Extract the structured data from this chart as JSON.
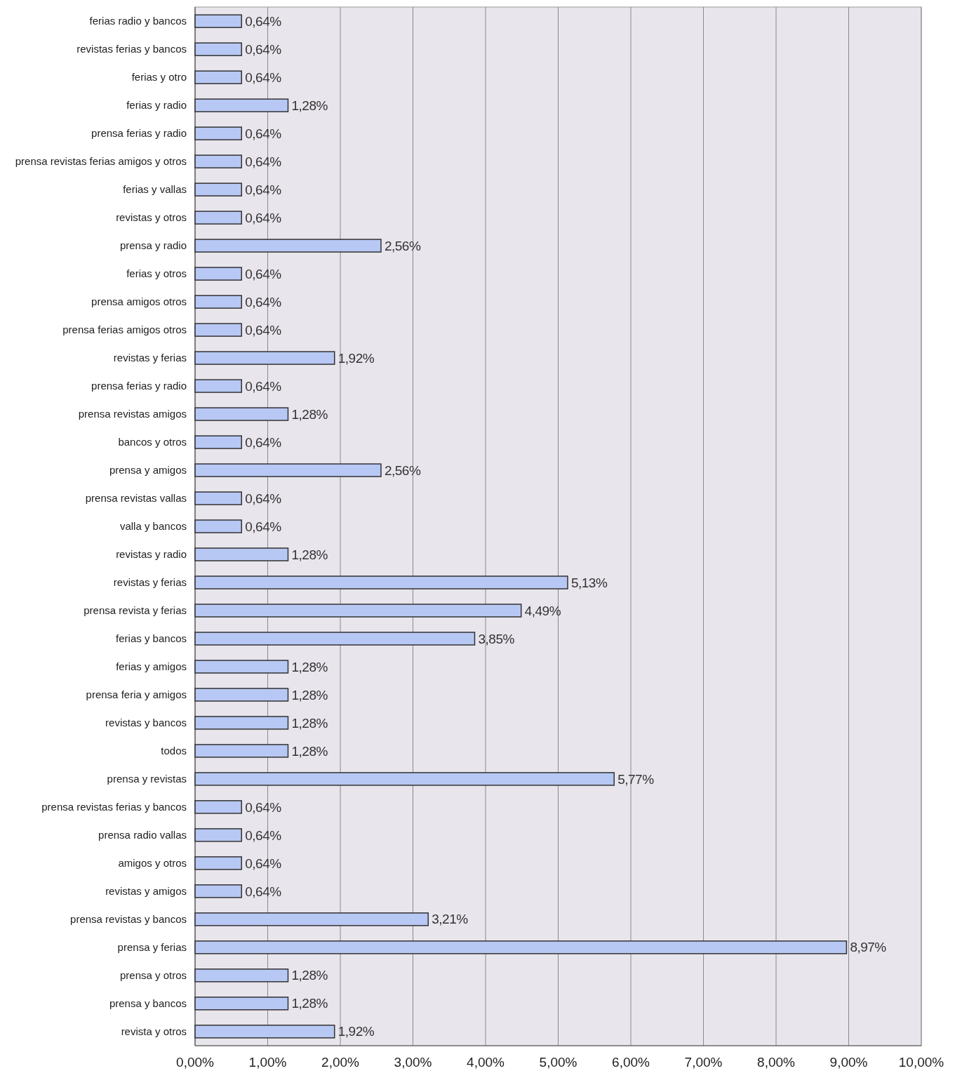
{
  "chart_data": {
    "type": "bar",
    "orientation": "horizontal",
    "categories": [
      "ferias radio  y bancos",
      "revistas ferias y bancos",
      "ferias y otro",
      "ferias y radio",
      "prensa ferias y radio",
      "prensa revistas ferias amigos y otros",
      "ferias y vallas",
      "revistas y otros",
      "prensa y radio",
      "ferias y otros",
      "prensa amigos otros",
      "prensa ferias amigos otros",
      "revistas y ferias",
      "prensa ferias y radio",
      "prensa revistas amigos",
      "bancos y otros",
      "prensa y amigos",
      "prensa revistas vallas",
      "valla y bancos",
      "revistas y radio",
      "revistas y ferias",
      "prensa revista y ferias",
      "ferias y bancos",
      "ferias y amigos",
      "prensa feria y amigos",
      "revistas y bancos",
      "todos",
      "prensa y revistas",
      "prensa revistas ferias y bancos",
      "prensa radio vallas",
      "amigos y otros",
      "revistas y amigos",
      "prensa revistas y bancos",
      "prensa y ferias",
      "prensa y otros",
      "prensa y bancos",
      "revista y otros"
    ],
    "values": [
      0.64,
      0.64,
      0.64,
      1.28,
      0.64,
      0.64,
      0.64,
      0.64,
      2.56,
      0.64,
      0.64,
      0.64,
      1.92,
      0.64,
      1.28,
      0.64,
      2.56,
      0.64,
      0.64,
      1.28,
      5.13,
      4.49,
      3.85,
      1.28,
      1.28,
      1.28,
      1.28,
      5.77,
      0.64,
      0.64,
      0.64,
      0.64,
      3.21,
      8.97,
      1.28,
      1.28,
      1.92
    ],
    "value_labels": [
      "0,64%",
      "0,64%",
      "0,64%",
      "1,28%",
      "0,64%",
      "0,64%",
      "0,64%",
      "0,64%",
      "2,56%",
      "0,64%",
      "0,64%",
      "0,64%",
      "1,92%",
      "0,64%",
      "1,28%",
      "0,64%",
      "2,56%",
      "0,64%",
      "0,64%",
      "1,28%",
      "5,13%",
      "4,49%",
      "3,85%",
      "1,28%",
      "1,28%",
      "1,28%",
      "1,28%",
      "5,77%",
      "0,64%",
      "0,64%",
      "0,64%",
      "0,64%",
      "3,21%",
      "8,97%",
      "1,28%",
      "1,28%",
      "1,92%"
    ],
    "color": "#b8c8f4",
    "xlim": [
      0,
      10
    ],
    "xticks": [
      {
        "value": 0,
        "label": "0,00%"
      },
      {
        "value": 1,
        "label": "1,00%"
      },
      {
        "value": 2,
        "label": "2,00%"
      },
      {
        "value": 3,
        "label": "3,00%"
      },
      {
        "value": 4,
        "label": "4,00%"
      },
      {
        "value": 5,
        "label": "5,00%"
      },
      {
        "value": 6,
        "label": "6,00%"
      },
      {
        "value": 7,
        "label": "7,00%"
      },
      {
        "value": 8,
        "label": "8,00%"
      },
      {
        "value": 9,
        "label": "9,00%"
      },
      {
        "value": 10,
        "label": "10,00%"
      }
    ],
    "grid": "x"
  }
}
